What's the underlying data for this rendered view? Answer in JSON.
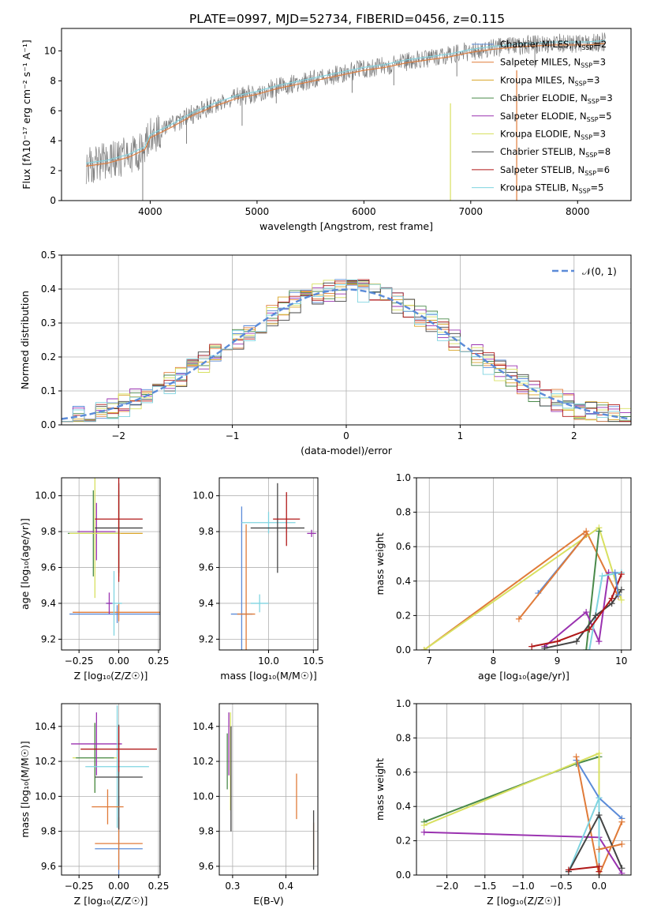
{
  "figure_title": "PLATE=0997, MJD=52734, FIBERID=0456, z=0.115",
  "colors": {
    "Chabrier MILES": "#5b8bd8",
    "Salpeter MILES": "#e07b39",
    "Kroupa MILES": "#d9a426",
    "Chabrier ELODIE": "#4a8a4a",
    "Salpeter ELODIE": "#9a32b0",
    "Kroupa ELODIE": "#d8e060",
    "Chabrier STELIB": "#444444",
    "Salpeter STELIB": "#b01818",
    "Kroupa STELIB": "#7fd4e0",
    "data": "#7f7f7f",
    "normal": "#5b8bd8"
  },
  "chart_data": [
    {
      "id": "spectrum",
      "type": "line",
      "title": "PLATE=0997, MJD=52734, FIBERID=0456, z=0.115",
      "xlabel": "wavelength [Angstrom, rest frame]",
      "ylabel": "Flux [fλ10⁻¹⁷ erg cm⁻² s⁻¹ A⁻¹]",
      "xlim": [
        3170,
        8500
      ],
      "ylim": [
        0,
        11.5
      ],
      "xticks": [
        4000,
        5000,
        6000,
        7000,
        8000
      ],
      "yticks": [
        0,
        2,
        4,
        6,
        8,
        10
      ],
      "grid": false,
      "legend_placement": "right",
      "legend": [
        {
          "name": "Chabrier MILES, N",
          "sub": "SSP",
          "suffix": "=2"
        },
        {
          "name": "Salpeter MILES, N",
          "sub": "SSP",
          "suffix": "=3"
        },
        {
          "name": "Kroupa MILES, N",
          "sub": "SSP",
          "suffix": "=3"
        },
        {
          "name": "Chabrier ELODIE, N",
          "sub": "SSP",
          "suffix": "=3"
        },
        {
          "name": "Salpeter ELODIE, N",
          "sub": "SSP",
          "suffix": "=5"
        },
        {
          "name": "Kroupa ELODIE, N",
          "sub": "SSP",
          "suffix": "=3"
        },
        {
          "name": "Chabrier STELIB, N",
          "sub": "SSP",
          "suffix": "=8"
        },
        {
          "name": "Salpeter STELIB, N",
          "sub": "SSP",
          "suffix": "=6"
        },
        {
          "name": "Kroupa STELIB, N",
          "sub": "SSP",
          "suffix": "=5"
        }
      ],
      "continuum_points": [
        [
          3400,
          2.4
        ],
        [
          3600,
          2.6
        ],
        [
          3800,
          3.0
        ],
        [
          3950,
          3.5
        ],
        [
          4000,
          4.3
        ],
        [
          4200,
          5.0
        ],
        [
          4400,
          5.8
        ],
        [
          4600,
          6.4
        ],
        [
          4800,
          6.9
        ],
        [
          5000,
          7.2
        ],
        [
          5200,
          7.6
        ],
        [
          5400,
          7.9
        ],
        [
          5600,
          8.2
        ],
        [
          5800,
          8.5
        ],
        [
          6000,
          8.8
        ],
        [
          6200,
          9.0
        ],
        [
          6400,
          9.3
        ],
        [
          6600,
          9.5
        ],
        [
          6800,
          9.7
        ],
        [
          7000,
          10.0
        ],
        [
          7200,
          10.2
        ],
        [
          7500,
          10.4
        ],
        [
          7800,
          10.5
        ],
        [
          8100,
          10.5
        ],
        [
          8260,
          10.6
        ]
      ],
      "absorption_lines": [
        {
          "x": 3930,
          "ymin": 0.0
        },
        {
          "x": 4340,
          "ymin": 3.8
        },
        {
          "x": 4860,
          "ymin": 5.0
        },
        {
          "x": 5180,
          "ymin": 6.5
        },
        {
          "x": 5890,
          "ymin": 7.2
        },
        {
          "x": 6280,
          "ymin": 7.7
        },
        {
          "x": 6870,
          "ymin": 8.3
        },
        {
          "x": 7600,
          "ymin": 8.9
        }
      ]
    },
    {
      "id": "residuals",
      "type": "bar",
      "xlabel": "(data-model)/error",
      "ylabel": "Normed distribution",
      "xlim": [
        -2.5,
        2.5
      ],
      "ylim": [
        0,
        0.5
      ],
      "xticks": [
        -2,
        -1,
        0,
        1,
        2
      ],
      "yticks": [
        0.0,
        0.1,
        0.2,
        0.3,
        0.4,
        0.5
      ],
      "grid": true,
      "legend_placement": "top-right",
      "legend": [
        "𝒩(0, 1)"
      ],
      "bin_width": 0.1
    },
    {
      "id": "age-vs-Z",
      "type": "scatter",
      "xlabel": "Z [log₁₀(Z/Z☉)]",
      "ylabel": "age  [log₁₀(age/yr)]",
      "xlim": [
        -0.36,
        0.26
      ],
      "ylim": [
        9.14,
        10.1
      ],
      "xticks": [
        -0.25,
        0.0,
        0.25
      ],
      "yticks": [
        9.2,
        9.4,
        9.6,
        9.8,
        10.0
      ],
      "grid": true,
      "points": [
        {
          "model": "Chabrier MILES",
          "x": -0.01,
          "xerr": 0.3,
          "y": 9.34,
          "yerr": 0.05
        },
        {
          "model": "Salpeter MILES",
          "x": 0.0,
          "xerr": 0.29,
          "y": 9.35,
          "yerr": 0.05
        },
        {
          "model": "Kroupa MILES",
          "x": 0.0,
          "xerr": 0.15,
          "y": 9.79,
          "yerr": 0.24
        },
        {
          "model": "Chabrier ELODIE",
          "x": -0.16,
          "xerr": 0.16,
          "y": 9.79,
          "yerr": 0.24
        },
        {
          "model": "Salpeter ELODIE",
          "x": -0.14,
          "xerr": 0.12,
          "y": 9.8,
          "yerr": 0.16
        },
        {
          "model": "Kroupa ELODIE",
          "x": -0.15,
          "xerr": 0.16,
          "y": 9.79,
          "yerr": 0.36
        },
        {
          "model": "Chabrier STELIB",
          "x": 0.0,
          "xerr": 0.15,
          "y": 9.82,
          "yerr": 0.25
        },
        {
          "model": "Salpeter STELIB",
          "x": 0.0,
          "xerr": 0.15,
          "y": 9.87,
          "yerr": 0.35
        },
        {
          "model": "Kroupa STELIB",
          "x": -0.03,
          "xerr": 0.05,
          "y": 9.4,
          "yerr": 0.18
        },
        {
          "model": "Salpeter ELODIE",
          "x": -0.06,
          "xerr": 0.02,
          "y": 9.4,
          "yerr": 0.06
        }
      ]
    },
    {
      "id": "age-vs-mass",
      "type": "scatter",
      "xlabel": "mass [log₁₀(M/M☉)]",
      "ylabel": "",
      "xlim": [
        9.45,
        10.55
      ],
      "ylim": [
        9.14,
        10.1
      ],
      "xticks": [
        10.0,
        10.5
      ],
      "yticks": [
        9.2,
        9.4,
        9.6,
        9.8,
        10.0
      ],
      "grid": true,
      "points": [
        {
          "model": "Chabrier MILES",
          "x": 9.7,
          "xerr": 0.12,
          "y": 9.34,
          "yerr": 0.6
        },
        {
          "model": "Salpeter MILES",
          "x": 9.75,
          "xerr": 0.1,
          "y": 9.34,
          "yerr": 0.5
        },
        {
          "model": "Kroupa STELIB",
          "x": 10.0,
          "xerr": 0.3,
          "y": 9.85,
          "yerr": 0.06
        },
        {
          "model": "Chabrier STELIB",
          "x": 10.1,
          "xerr": 0.3,
          "y": 9.82,
          "yerr": 0.25
        },
        {
          "model": "Salpeter STELIB",
          "x": 10.2,
          "xerr": 0.15,
          "y": 9.87,
          "yerr": 0.15
        },
        {
          "model": "Salpeter ELODIE",
          "x": 10.48,
          "xerr": 0.05,
          "y": 9.79,
          "yerr": 0.02
        },
        {
          "model": "Kroupa STELIB",
          "x": 9.9,
          "xerr": 0.1,
          "y": 9.4,
          "yerr": 0.05
        }
      ]
    },
    {
      "id": "massweight-vs-age",
      "type": "line",
      "xlabel": "age  [log₁₀(age/yr)]",
      "ylabel": "mass weight",
      "xlim": [
        6.8,
        10.15
      ],
      "ylim": [
        0,
        1.0
      ],
      "xticks": [
        7,
        8,
        9,
        10
      ],
      "yticks": [
        0.0,
        0.2,
        0.4,
        0.6,
        0.8,
        1.0
      ],
      "grid": true,
      "series": [
        {
          "model": "Chabrier MILES",
          "x": [
            8.7,
            9.45
          ],
          "y": [
            0.33,
            0.67
          ]
        },
        {
          "model": "Salpeter MILES",
          "x": [
            6.92,
            9.45,
            9.95
          ],
          "y": [
            0.0,
            0.69,
            0.31
          ]
        },
        {
          "model": "Kroupa ELODIE",
          "x": [
            6.92,
            9.65,
            10.0
          ],
          "y": [
            0.0,
            0.71,
            0.29
          ]
        },
        {
          "model": "Chabrier ELODIE",
          "x": [
            9.45,
            9.65
          ],
          "y": [
            0.0,
            0.69
          ]
        },
        {
          "model": "Salpeter ELODIE",
          "x": [
            8.8,
            9.45,
            9.65,
            9.8
          ],
          "y": [
            0.02,
            0.22,
            0.05,
            0.45
          ]
        },
        {
          "model": "Kroupa STELIB",
          "x": [
            9.5,
            9.7,
            10.0
          ],
          "y": [
            0.0,
            0.43,
            0.45
          ]
        },
        {
          "model": "Chabrier STELIB",
          "x": [
            8.8,
            9.3,
            9.6,
            9.85,
            10.0
          ],
          "y": [
            0.01,
            0.05,
            0.2,
            0.27,
            0.35
          ]
        },
        {
          "model": "Salpeter STELIB",
          "x": [
            8.6,
            9.0,
            9.5,
            9.85,
            10.0
          ],
          "y": [
            0.02,
            0.05,
            0.12,
            0.3,
            0.44
          ]
        },
        {
          "model": "Salpeter MILES",
          "x": [
            8.4,
            9.45
          ],
          "y": [
            0.18,
            0.67
          ]
        },
        {
          "model": "Chabrier MILES",
          "x": [
            9.9,
            9.95
          ],
          "y": [
            0.45,
            0.32
          ]
        }
      ]
    },
    {
      "id": "mass-vs-Z",
      "type": "scatter",
      "xlabel": "Z [log₁₀(Z/Z☉)]",
      "ylabel": "mass [log₁₀(M/M☉)]",
      "xlim": [
        -0.36,
        0.26
      ],
      "ylim": [
        9.55,
        10.53
      ],
      "xticks": [
        -0.25,
        0.0,
        0.25
      ],
      "yticks": [
        9.6,
        9.8,
        10.0,
        10.2,
        10.4
      ],
      "grid": true,
      "points": [
        {
          "model": "Chabrier MILES",
          "x": 0.0,
          "xerr": 0.15,
          "y": 9.7,
          "yerr": 0.3
        },
        {
          "model": "Salpeter MILES",
          "x": 0.0,
          "xerr": 0.15,
          "y": 9.73,
          "yerr": 0.15
        },
        {
          "model": "Kroupa ELODIE",
          "x": -0.15,
          "xerr": 0.14,
          "y": 10.22,
          "yerr": 0.2
        },
        {
          "model": "Chabrier ELODIE",
          "x": -0.15,
          "xerr": 0.12,
          "y": 10.22,
          "yerr": 0.2
        },
        {
          "model": "Salpeter ELODIE",
          "x": -0.14,
          "xerr": 0.16,
          "y": 10.3,
          "yerr": 0.18
        },
        {
          "model": "Kroupa STELIB",
          "x": -0.01,
          "xerr": 0.2,
          "y": 10.17,
          "yerr": 0.35
        },
        {
          "model": "Chabrier STELIB",
          "x": 0.0,
          "xerr": 0.15,
          "y": 10.11,
          "yerr": 0.3
        },
        {
          "model": "Salpeter STELIB",
          "x": 0.0,
          "xerr": 0.24,
          "y": 10.27,
          "yerr": 0.13
        },
        {
          "model": "Salpeter MILES",
          "x": -0.07,
          "xerr": 0.1,
          "y": 9.94,
          "yerr": 0.1
        }
      ]
    },
    {
      "id": "mass-vs-EBV",
      "type": "scatter",
      "xlabel": "E(B-V)",
      "ylabel": "",
      "xlim": [
        0.275,
        0.46
      ],
      "ylim": [
        9.55,
        10.53
      ],
      "xticks": [
        0.3,
        0.4
      ],
      "yticks": [
        9.6,
        9.8,
        10.0,
        10.2,
        10.4
      ],
      "grid": true,
      "points": [
        {
          "model": "Chabrier ELODIE",
          "x": 0.29,
          "y": 10.2,
          "yerr": 0.16
        },
        {
          "model": "Salpeter ELODIE",
          "x": 0.293,
          "y": 10.3,
          "yerr": 0.18
        },
        {
          "model": "Kroupa ELODIE",
          "x": 0.296,
          "y": 10.2,
          "yerr": 0.28
        },
        {
          "model": "Chabrier STELIB",
          "x": 0.297,
          "y": 10.1,
          "yerr": 0.3
        },
        {
          "model": "Salpeter MILES",
          "x": 0.42,
          "y": 10.0,
          "yerr": 0.13
        },
        {
          "model": "Salpeter MILES",
          "x": 0.452,
          "y": 9.73,
          "yerr": 0.12
        },
        {
          "model": "Chabrier STELIB",
          "x": 0.452,
          "y": 9.75,
          "yerr": 0.17
        }
      ]
    },
    {
      "id": "massweight-vs-Z",
      "type": "line",
      "xlabel": "Z [log₁₀(Z/Z☉)]",
      "ylabel": "mass weight",
      "xlim": [
        -2.4,
        0.42
      ],
      "ylim": [
        0,
        1.0
      ],
      "xticks": [
        -2.0,
        -1.5,
        -1.0,
        -0.5,
        0.0
      ],
      "yticks": [
        0.0,
        0.2,
        0.4,
        0.6,
        0.8,
        1.0
      ],
      "grid": true,
      "series": [
        {
          "model": "Chabrier ELODIE",
          "x": [
            -2.3,
            -0.3,
            0.0
          ],
          "y": [
            0.31,
            0.65,
            0.69
          ]
        },
        {
          "model": "Kroupa ELODIE",
          "x": [
            -2.3,
            0.0,
            0.0
          ],
          "y": [
            0.29,
            0.71,
            0.0
          ]
        },
        {
          "model": "Chabrier MILES",
          "x": [
            -0.3,
            0.0,
            0.3
          ],
          "y": [
            0.67,
            0.45,
            0.33
          ]
        },
        {
          "model": "Salpeter MILES",
          "x": [
            -0.3,
            0.0,
            0.3
          ],
          "y": [
            0.69,
            0.0,
            0.31
          ]
        },
        {
          "model": "Salpeter ELODIE",
          "x": [
            -2.3,
            0.0,
            0.3
          ],
          "y": [
            0.25,
            0.22,
            0.01
          ]
        },
        {
          "model": "Kroupa STELIB",
          "x": [
            -0.4,
            0.0,
            0.0
          ],
          "y": [
            0.02,
            0.45,
            0.0
          ]
        },
        {
          "model": "Chabrier STELIB",
          "x": [
            -0.4,
            0.0,
            0.3
          ],
          "y": [
            0.02,
            0.35,
            0.04
          ]
        },
        {
          "model": "Salpeter STELIB",
          "x": [
            -0.4,
            0.0,
            0.0
          ],
          "y": [
            0.03,
            0.05,
            0.02
          ]
        },
        {
          "model": "Salpeter MILES",
          "x": [
            0.0,
            0.3
          ],
          "y": [
            0.15,
            0.18
          ]
        }
      ]
    }
  ]
}
